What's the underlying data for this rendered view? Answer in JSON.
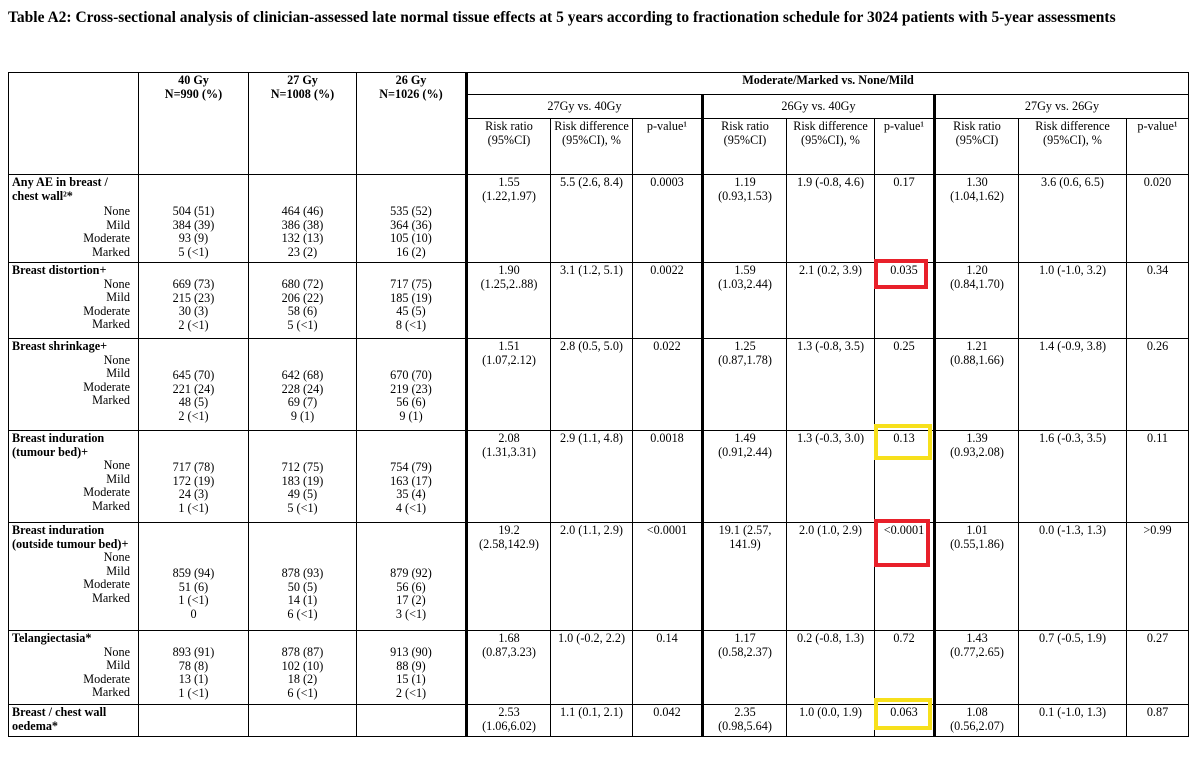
{
  "title": "Table A2: Cross-sectional analysis of clinician-assessed late normal tissue effects at 5 years according to fractionation schedule for 3024 patients with 5-year assessments",
  "header": {
    "col40": "40 Gy",
    "col40n": "N=990 (%)",
    "col27": "27 Gy",
    "col27n": "N=1008 (%)",
    "col26": "26 Gy",
    "col26n": "N=1026 (%)",
    "group": "Moderate/Marked vs. None/Mild",
    "cmp1": "27Gy vs. 40Gy",
    "cmp2": "26Gy vs. 40Gy",
    "cmp3": "27Gy vs. 26Gy",
    "rr": "Risk ratio (95%CI)",
    "rd1": "Risk difference (95%CI), %",
    "rd2": "Risk difference (95%CI), %",
    "rd3": "Risk difference (95%CI), %",
    "p1": "p-value¹",
    "p2": "p-value¹",
    "p3": "p-value¹"
  },
  "highlight_colors": {
    "red": "#e8202a",
    "yellow": "#f7e01b"
  },
  "rows": [
    {
      "label": "Any AE in breast / chest wall²*",
      "levels": [
        "None",
        "Mild",
        "Moderate",
        "Marked"
      ],
      "c40": [
        "504 (51)",
        "384 (39)",
        "93 (9)",
        "5 (<1)"
      ],
      "c27": [
        "464 (46)",
        "386 (38)",
        "132 (13)",
        "23 (2)"
      ],
      "c26": [
        "535 (52)",
        "364 (36)",
        "105 (10)",
        "16 (2)"
      ],
      "rr1": "1.55 (1.22,1.97)",
      "rd1": "5.5 (2.6, 8.4)",
      "p1": "0.0003",
      "rr2": "1.19 (0.93,1.53)",
      "rd2": "1.9 (-0.8, 4.6)",
      "p2": "0.17",
      "rr3": "1.30 (1.04,1.62)",
      "rd3": "3.6 (0.6, 6.5)",
      "p3": "0.020"
    },
    {
      "label": "Breast distortion+",
      "levels": [
        "None",
        "Mild",
        "Moderate",
        "Marked"
      ],
      "c40": [
        "669 (73)",
        "215 (23)",
        "30 (3)",
        "2 (<1)"
      ],
      "c27": [
        "680 (72)",
        "206 (22)",
        "58 (6)",
        "5 (<1)"
      ],
      "c26": [
        "717 (75)",
        "185 (19)",
        "45 (5)",
        "8 (<1)"
      ],
      "rr1": "1.90 (1.25,2..88)",
      "rd1": "3.1 (1.2, 5.1)",
      "p1": "0.0022",
      "rr2": "1.59 (1.03,2.44)",
      "rd2": "2.1 (0.2, 3.9)",
      "p2": "0.035",
      "rr3": "1.20 (0.84,1.70)",
      "rd3": "1.0 (-1.0, 3.2)",
      "p3": "0.34"
    },
    {
      "label": "Breast shrinkage+",
      "levels": [
        "None",
        "Mild",
        "Moderate",
        "Marked"
      ],
      "c40": [
        "645 (70)",
        "221 (24)",
        "48 (5)",
        "2 (<1)"
      ],
      "c27": [
        "642 (68)",
        "228 (24)",
        "69 (7)",
        "9 (1)"
      ],
      "c26": [
        "670 (70)",
        "219 (23)",
        "56 (6)",
        "9 (1)"
      ],
      "rr1": "1.51 (1.07,2.12)",
      "rd1": "2.8 (0.5, 5.0)",
      "p1": "0.022",
      "rr2": "1.25 (0.87,1.78)",
      "rd2": "1.3 (-0.8, 3.5)",
      "p2": "0.25",
      "rr3": "1.21 (0.88,1.66)",
      "rd3": "1.4 (-0.9, 3.8)",
      "p3": "0.26"
    },
    {
      "label": "Breast induration (tumour bed)+",
      "levels": [
        "None",
        "Mild",
        "Moderate",
        "Marked"
      ],
      "c40": [
        "717 (78)",
        "172 (19)",
        "24 (3)",
        "1 (<1)"
      ],
      "c27": [
        "712 (75)",
        "183 (19)",
        "49 (5)",
        "5 (<1)"
      ],
      "c26": [
        "754 (79)",
        "163 (17)",
        "35 (4)",
        "4 (<1)"
      ],
      "rr1": "2.08 (1.31,3.31)",
      "rd1": "2.9 (1.1, 4.8)",
      "p1": "0.0018",
      "rr2": "1.49 (0.91,2.44)",
      "rd2": "1.3 (-0.3, 3.0)",
      "p2": "0.13",
      "rr3": "1.39 (0.93,2.08)",
      "rd3": "1.6 (-0.3, 3.5)",
      "p3": "0.11"
    },
    {
      "label": "Breast induration (outside tumour bed)+",
      "levels": [
        "None",
        "Mild",
        "Moderate",
        "Marked"
      ],
      "c40": [
        "859 (94)",
        "51 (6)",
        "1 (<1)",
        "0"
      ],
      "c27": [
        "878 (93)",
        "50 (5)",
        "14 (1)",
        "6 (<1)"
      ],
      "c26": [
        "879 (92)",
        "56 (6)",
        "17 (2)",
        "3 (<1)"
      ],
      "rr1": "19.2 (2.58,142.9)",
      "rd1": "2.0 (1.1, 2.9)",
      "p1": "<0.0001",
      "rr2": "19.1 (2.57, 141.9)",
      "rd2": "2.0 (1.0, 2.9)",
      "p2": "<0.0001",
      "rr3": "1.01 (0.55,1.86)",
      "rd3": "0.0 (-1.3, 1.3)",
      "p3": ">0.99"
    },
    {
      "label": "Telangiectasia*",
      "levels": [
        "None",
        "Mild",
        "Moderate",
        "Marked"
      ],
      "c40": [
        "893 (91)",
        "78 (8)",
        "13 (1)",
        "1 (<1)"
      ],
      "c27": [
        "878 (87)",
        "102 (10)",
        "18 (2)",
        "6 (<1)"
      ],
      "c26": [
        "913 (90)",
        "88 (9)",
        "15 (1)",
        "2 (<1)"
      ],
      "rr1": "1.68 (0.87,3.23)",
      "rd1": "1.0 (-0.2, 2.2)",
      "p1": "0.14",
      "rr2": "1.17 (0.58,2.37)",
      "rd2": "0.2 (-0.8, 1.3)",
      "p2": "0.72",
      "rr3": "1.43 (0.77,2.65)",
      "rd3": "0.7 (-0.5, 1.9)",
      "p3": "0.27"
    },
    {
      "label": "Breast / chest wall oedema*",
      "rr1": "2.53 (1.06,6.02)",
      "rd1": "1.1 (0.1, 2.1)",
      "p1": "0.042",
      "rr2": "2.35 (0.98,5.64)",
      "rd2": "1.0 (0.0, 1.9)",
      "p2": "0.063",
      "rr3": "1.08 (0.56,2.07)",
      "rd3": "0.1 (-1.0, 1.3)",
      "p3": "0.87"
    }
  ]
}
